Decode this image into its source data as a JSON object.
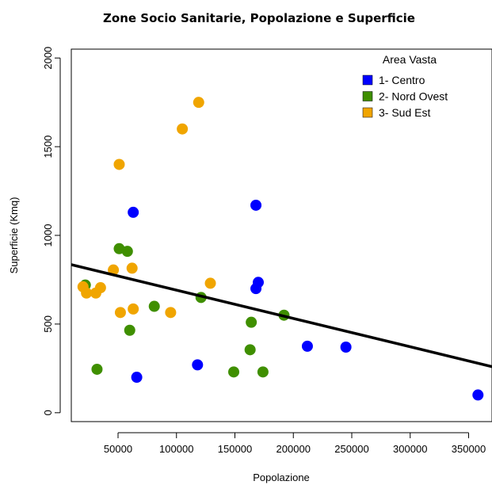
{
  "chart_data": {
    "type": "scatter",
    "title": "Zone Socio Sanitarie, Popolazione e Superficie",
    "xlabel": "Popolazione",
    "ylabel": "Superficie (Kmq)",
    "xlim": [
      10000,
      370000
    ],
    "ylim": [
      -50,
      2050
    ],
    "x_ticks": [
      50000,
      100000,
      150000,
      200000,
      250000,
      300000,
      350000
    ],
    "y_ticks": [
      0,
      500,
      1000,
      1500,
      2000
    ],
    "legend": {
      "title": "Area Vasta",
      "placement": "top-right",
      "entries": [
        "1- Centro",
        "2- Nord Ovest",
        "3- Sud Est"
      ]
    },
    "series": [
      {
        "name": "1- Centro",
        "color": "#0000ff",
        "points": [
          [
            63000,
            1130
          ],
          [
            66000,
            200
          ],
          [
            118000,
            270
          ],
          [
            168000,
            1170
          ],
          [
            168000,
            700
          ],
          [
            170000,
            735
          ],
          [
            212000,
            375
          ],
          [
            245000,
            370
          ],
          [
            358000,
            100
          ]
        ]
      },
      {
        "name": "2- Nord Ovest",
        "color": "#3f8f00",
        "points": [
          [
            22000,
            720
          ],
          [
            32000,
            245
          ],
          [
            51000,
            925
          ],
          [
            58000,
            910
          ],
          [
            60000,
            465
          ],
          [
            81000,
            600
          ],
          [
            121000,
            650
          ],
          [
            149000,
            230
          ],
          [
            163000,
            355
          ],
          [
            164000,
            510
          ],
          [
            174000,
            230
          ],
          [
            192000,
            550
          ]
        ]
      },
      {
        "name": "3- Sud Est",
        "color": "#f0a500",
        "points": [
          [
            20000,
            710
          ],
          [
            23000,
            675
          ],
          [
            31000,
            675
          ],
          [
            35000,
            705
          ],
          [
            46000,
            805
          ],
          [
            51000,
            1400
          ],
          [
            52000,
            565
          ],
          [
            62000,
            815
          ],
          [
            63000,
            585
          ],
          [
            95000,
            565
          ],
          [
            105000,
            1600
          ],
          [
            119000,
            1750
          ],
          [
            129000,
            730
          ]
        ]
      }
    ],
    "trend_line": {
      "color": "#000000",
      "x": [
        10000,
        370000
      ],
      "y": [
        835,
        260
      ]
    }
  }
}
